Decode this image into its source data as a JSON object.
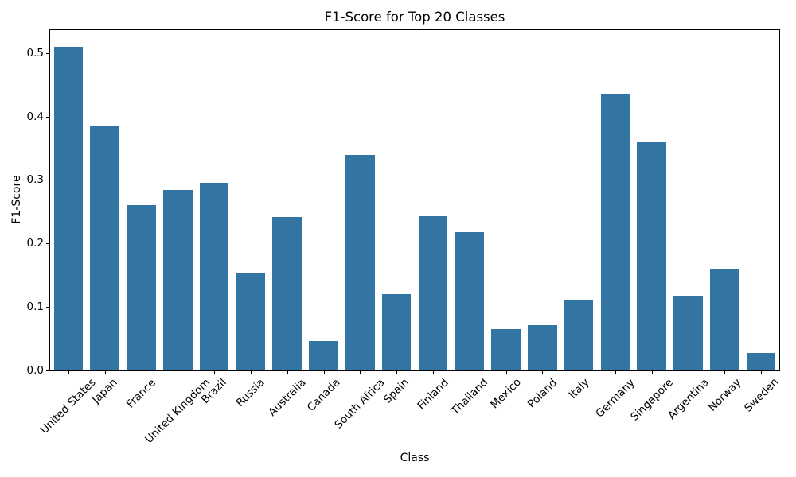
{
  "chart_data": {
    "type": "bar",
    "title": "F1-Score for Top 20 Classes",
    "xlabel": "Class",
    "ylabel": "F1-Score",
    "categories": [
      "United States",
      "Japan",
      "France",
      "United Kingdom",
      "Brazil",
      "Russia",
      "Australia",
      "Canada",
      "South Africa",
      "Spain",
      "Finland",
      "Thailand",
      "Mexico",
      "Poland",
      "Italy",
      "Germany",
      "Singapore",
      "Argentina",
      "Norway",
      "Sweden"
    ],
    "values": [
      0.51,
      0.384,
      0.26,
      0.284,
      0.296,
      0.153,
      0.242,
      0.046,
      0.339,
      0.12,
      0.243,
      0.218,
      0.065,
      0.072,
      0.112,
      0.436,
      0.36,
      0.118,
      0.16,
      0.027
    ],
    "yticks": [
      0.0,
      0.1,
      0.2,
      0.3,
      0.4,
      0.5
    ],
    "ylim": [
      0,
      0.536
    ],
    "grid": false,
    "legend_position": "none",
    "bar_color": "#3274a2",
    "axis_color": "#000000",
    "text_color": "#000000",
    "background_color": "#ffffff"
  }
}
